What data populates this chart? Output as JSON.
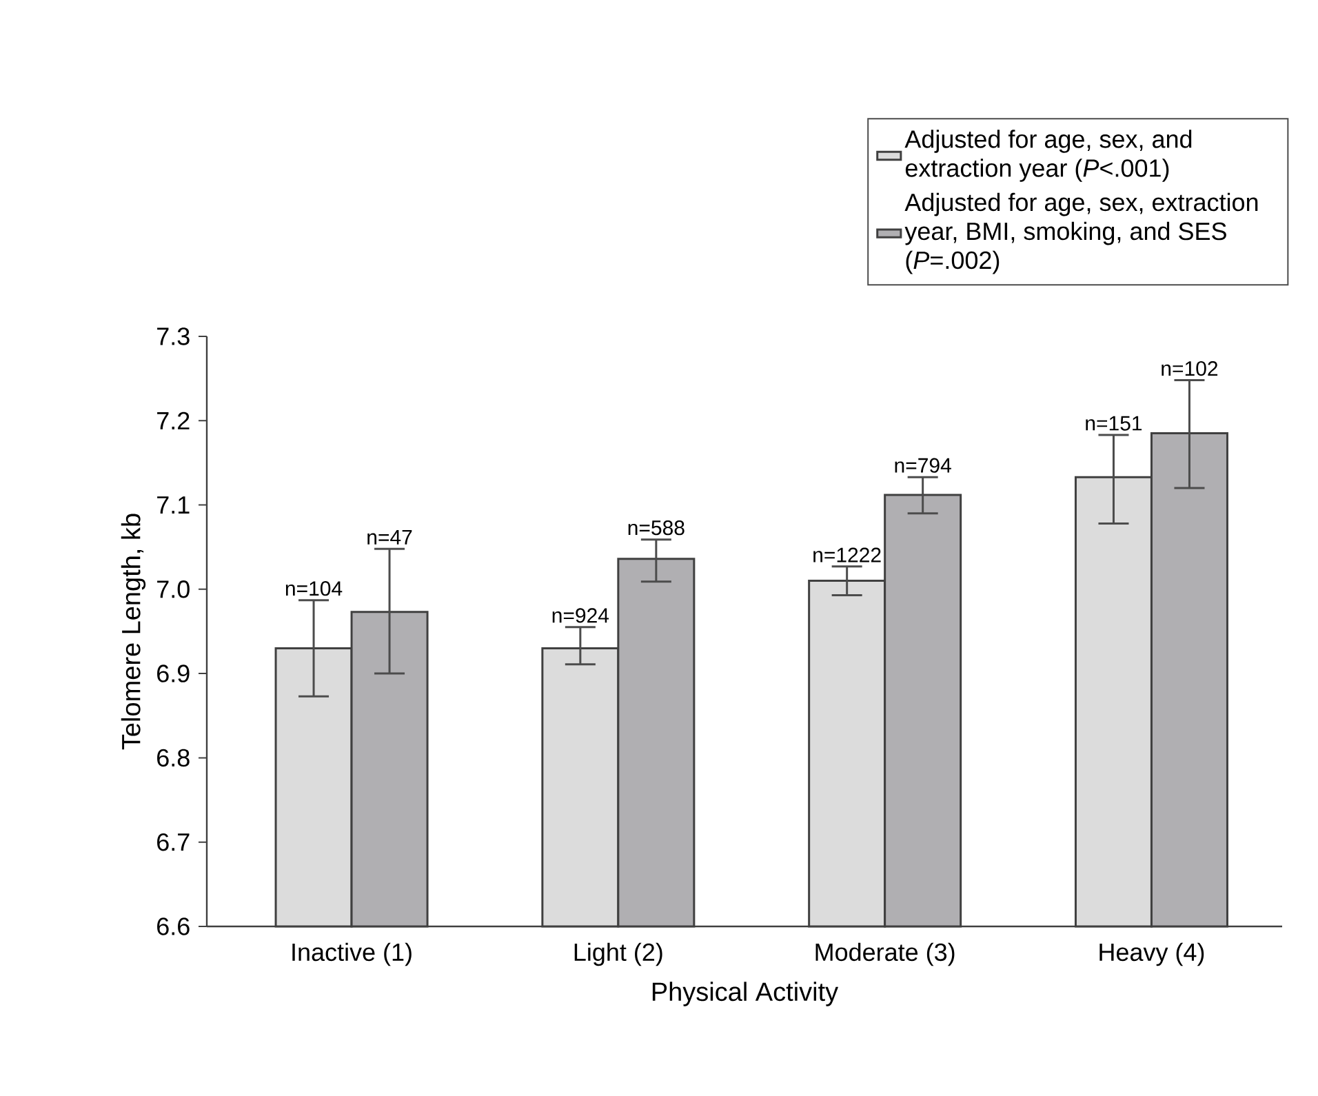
{
  "chart_data": {
    "type": "bar",
    "xlabel": "Physical Activity",
    "ylabel": "Telomere Length, kb",
    "categories": [
      "Inactive (1)",
      "Light (2)",
      "Moderate (3)",
      "Heavy (4)"
    ],
    "series": [
      {
        "name": "Adjusted for age, sex, and extraction year (*P*<.001)",
        "color": "#dcdcdc",
        "values": [
          6.93,
          6.93,
          7.01,
          7.133
        ],
        "errors": [
          [
            6.873,
            6.987
          ],
          [
            6.911,
            6.955
          ],
          [
            6.993,
            7.027
          ],
          [
            7.078,
            7.183
          ]
        ]
      },
      {
        "name": "Adjusted for age, sex, extraction year, BMI, smoking, and SES (*P*=.002)",
        "color": "#b0afb2",
        "values": [
          6.973,
          7.036,
          7.112,
          7.185
        ],
        "errors": [
          [
            6.9,
            7.048
          ],
          [
            7.009,
            7.059
          ],
          [
            7.09,
            7.133
          ],
          [
            7.12,
            7.248
          ]
        ]
      }
    ],
    "annotations": [
      "n=104",
      "n=47",
      "n=924",
      "n=588",
      "n=1222",
      "n=794",
      "n=151",
      "n=102"
    ],
    "ylim": [
      6.6,
      7.3
    ],
    "yticks": [
      6.6,
      6.7,
      6.8,
      6.9,
      {
        "value": 7.0,
        "label": "7.0"
      },
      7.1,
      7.2,
      7.3
    ],
    "legend": "top right"
  }
}
